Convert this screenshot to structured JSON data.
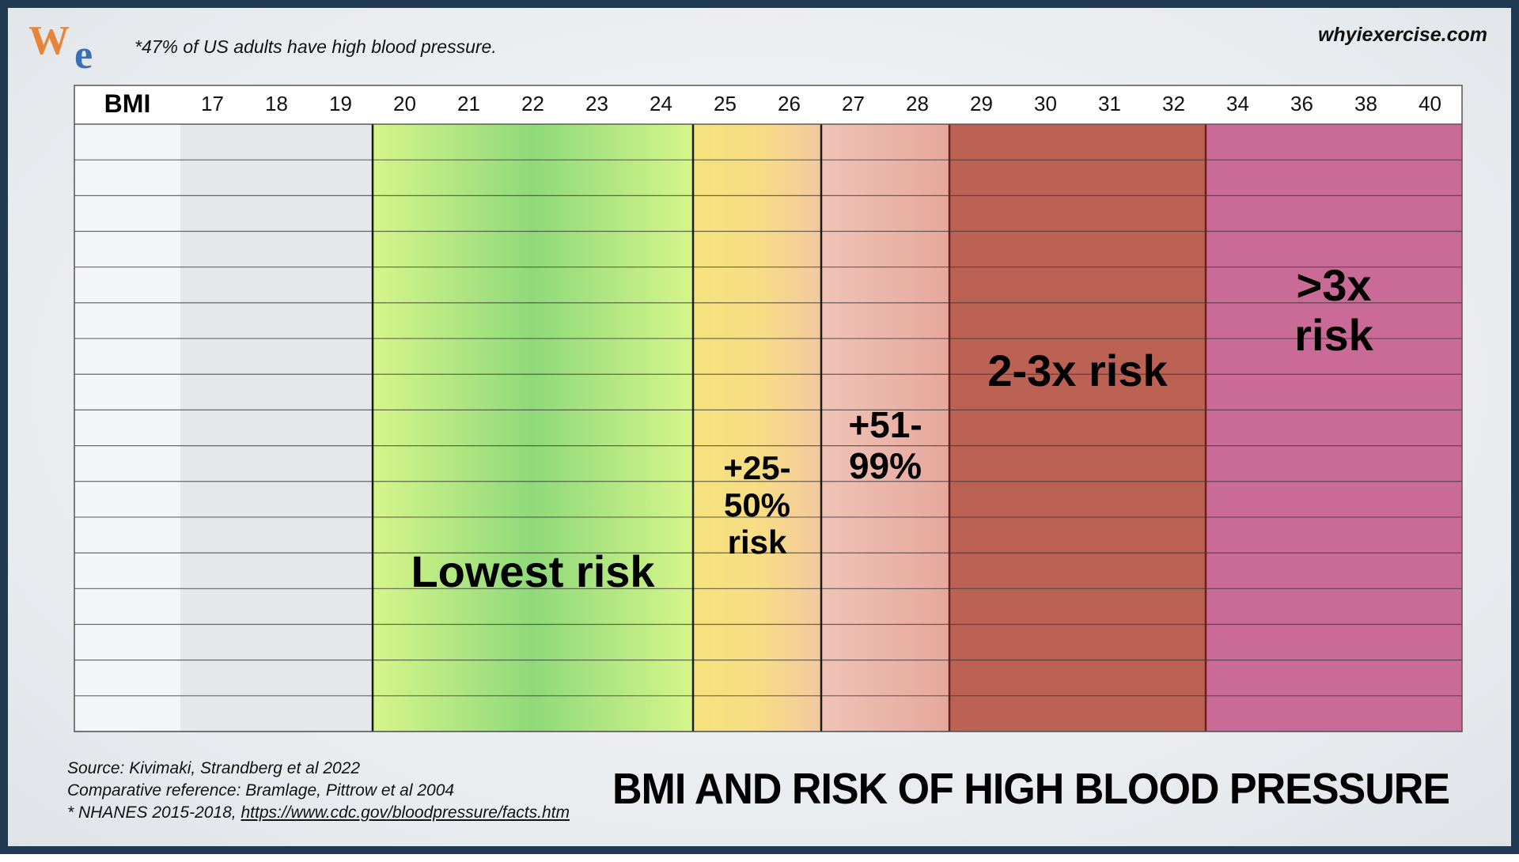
{
  "header": {
    "logo_letters": [
      "W",
      "e"
    ],
    "note": "*47% of US adults have high blood pressure.",
    "site": "whyiexercise.com"
  },
  "footer": {
    "source_lines": [
      "Source:  Kivimaki, Strandberg et al 2022",
      "Comparative reference:  Bramlage, Pittrow et al 2004",
      "* NHANES 2015-2018, "
    ],
    "source_link": "https://www.cdc.gov/bloodpressure/facts.htm"
  },
  "chart_data": {
    "type": "table",
    "title": "BMI AND RISK OF HIGH BLOOD PRESSURE",
    "row_header": "BMI",
    "bmi_columns": [
      "17",
      "18",
      "19",
      "20",
      "21",
      "22",
      "23",
      "24",
      "25",
      "26",
      "27",
      "28",
      "29",
      "30",
      "31",
      "32",
      "34",
      "36",
      "38",
      "40"
    ],
    "row_count": 17,
    "bands": [
      {
        "name": "baseline",
        "from": "17",
        "to": "19",
        "label": "",
        "color": "#e6e7ea"
      },
      {
        "name": "lowest",
        "from": "20",
        "to": "24",
        "label": "Lowest risk",
        "color": "#8fd97a",
        "edge_color": "#d6f58a"
      },
      {
        "name": "moderate",
        "from": "25",
        "to": "26",
        "label": "+25-\n50%\nrisk",
        "color": "#f6e27c",
        "edge_color": "#f2c8a0"
      },
      {
        "name": "elevated",
        "from": "27",
        "to": "28",
        "label": "+51-\n99%",
        "color": "#e6a79c",
        "edge_color": "#f0c3b6"
      },
      {
        "name": "high",
        "from": "29",
        "to": "32",
        "label": "2-3x risk",
        "color": "#bb6255"
      },
      {
        "name": "very-high",
        "from": "34",
        "to": "40",
        "label": ">3x\nrisk",
        "color": "#c96a97"
      }
    ]
  }
}
